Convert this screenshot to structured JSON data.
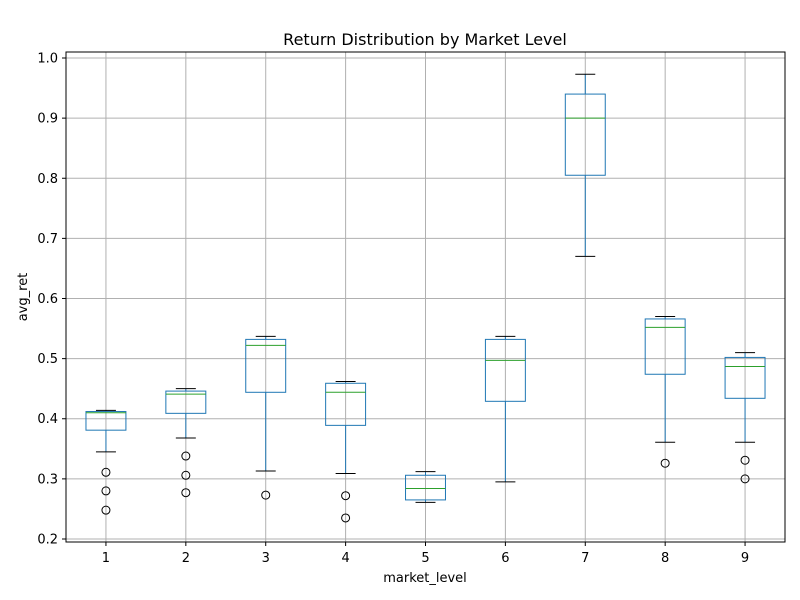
{
  "chart_data": {
    "type": "box",
    "title": "Return Distribution by Market Level",
    "xlabel": "market_level",
    "ylabel": "avg_ret",
    "ylim": [
      0.195,
      1.01
    ],
    "yticks": [
      0.2,
      0.3,
      0.4,
      0.5,
      0.6,
      0.7,
      0.8,
      0.9,
      1.0
    ],
    "ytick_labels": [
      "0.2",
      "0.3",
      "0.4",
      "0.5",
      "0.6",
      "0.7",
      "0.8",
      "0.9",
      "1.0"
    ],
    "grid": true,
    "box_color": "#1f77b4",
    "median_color": "#2ca02c",
    "categories": [
      "1",
      "2",
      "3",
      "4",
      "5",
      "6",
      "7",
      "8",
      "9"
    ],
    "boxes": [
      {
        "whisker_low": 0.345,
        "q1": 0.381,
        "median": 0.41,
        "q3": 0.412,
        "whisker_high": 0.414,
        "outliers": [
          0.311,
          0.28,
          0.248
        ]
      },
      {
        "whisker_low": 0.368,
        "q1": 0.409,
        "median": 0.441,
        "q3": 0.446,
        "whisker_high": 0.45,
        "outliers": [
          0.338,
          0.306,
          0.277
        ]
      },
      {
        "whisker_low": 0.313,
        "q1": 0.444,
        "median": 0.522,
        "q3": 0.532,
        "whisker_high": 0.537,
        "outliers": [
          0.273
        ]
      },
      {
        "whisker_low": 0.309,
        "q1": 0.389,
        "median": 0.444,
        "q3": 0.459,
        "whisker_high": 0.462,
        "outliers": [
          0.272,
          0.235
        ]
      },
      {
        "whisker_low": 0.261,
        "q1": 0.265,
        "median": 0.284,
        "q3": 0.306,
        "whisker_high": 0.312,
        "outliers": []
      },
      {
        "whisker_low": 0.295,
        "q1": 0.429,
        "median": 0.497,
        "q3": 0.532,
        "whisker_high": 0.537,
        "outliers": []
      },
      {
        "whisker_low": 0.67,
        "q1": 0.805,
        "median": 0.9,
        "q3": 0.94,
        "whisker_high": 0.973,
        "outliers": []
      },
      {
        "whisker_low": 0.361,
        "q1": 0.474,
        "median": 0.552,
        "q3": 0.566,
        "whisker_high": 0.57,
        "outliers": [
          0.326
        ]
      },
      {
        "whisker_low": 0.361,
        "q1": 0.434,
        "median": 0.487,
        "q3": 0.502,
        "whisker_high": 0.51,
        "outliers": [
          0.331,
          0.3
        ]
      }
    ]
  }
}
